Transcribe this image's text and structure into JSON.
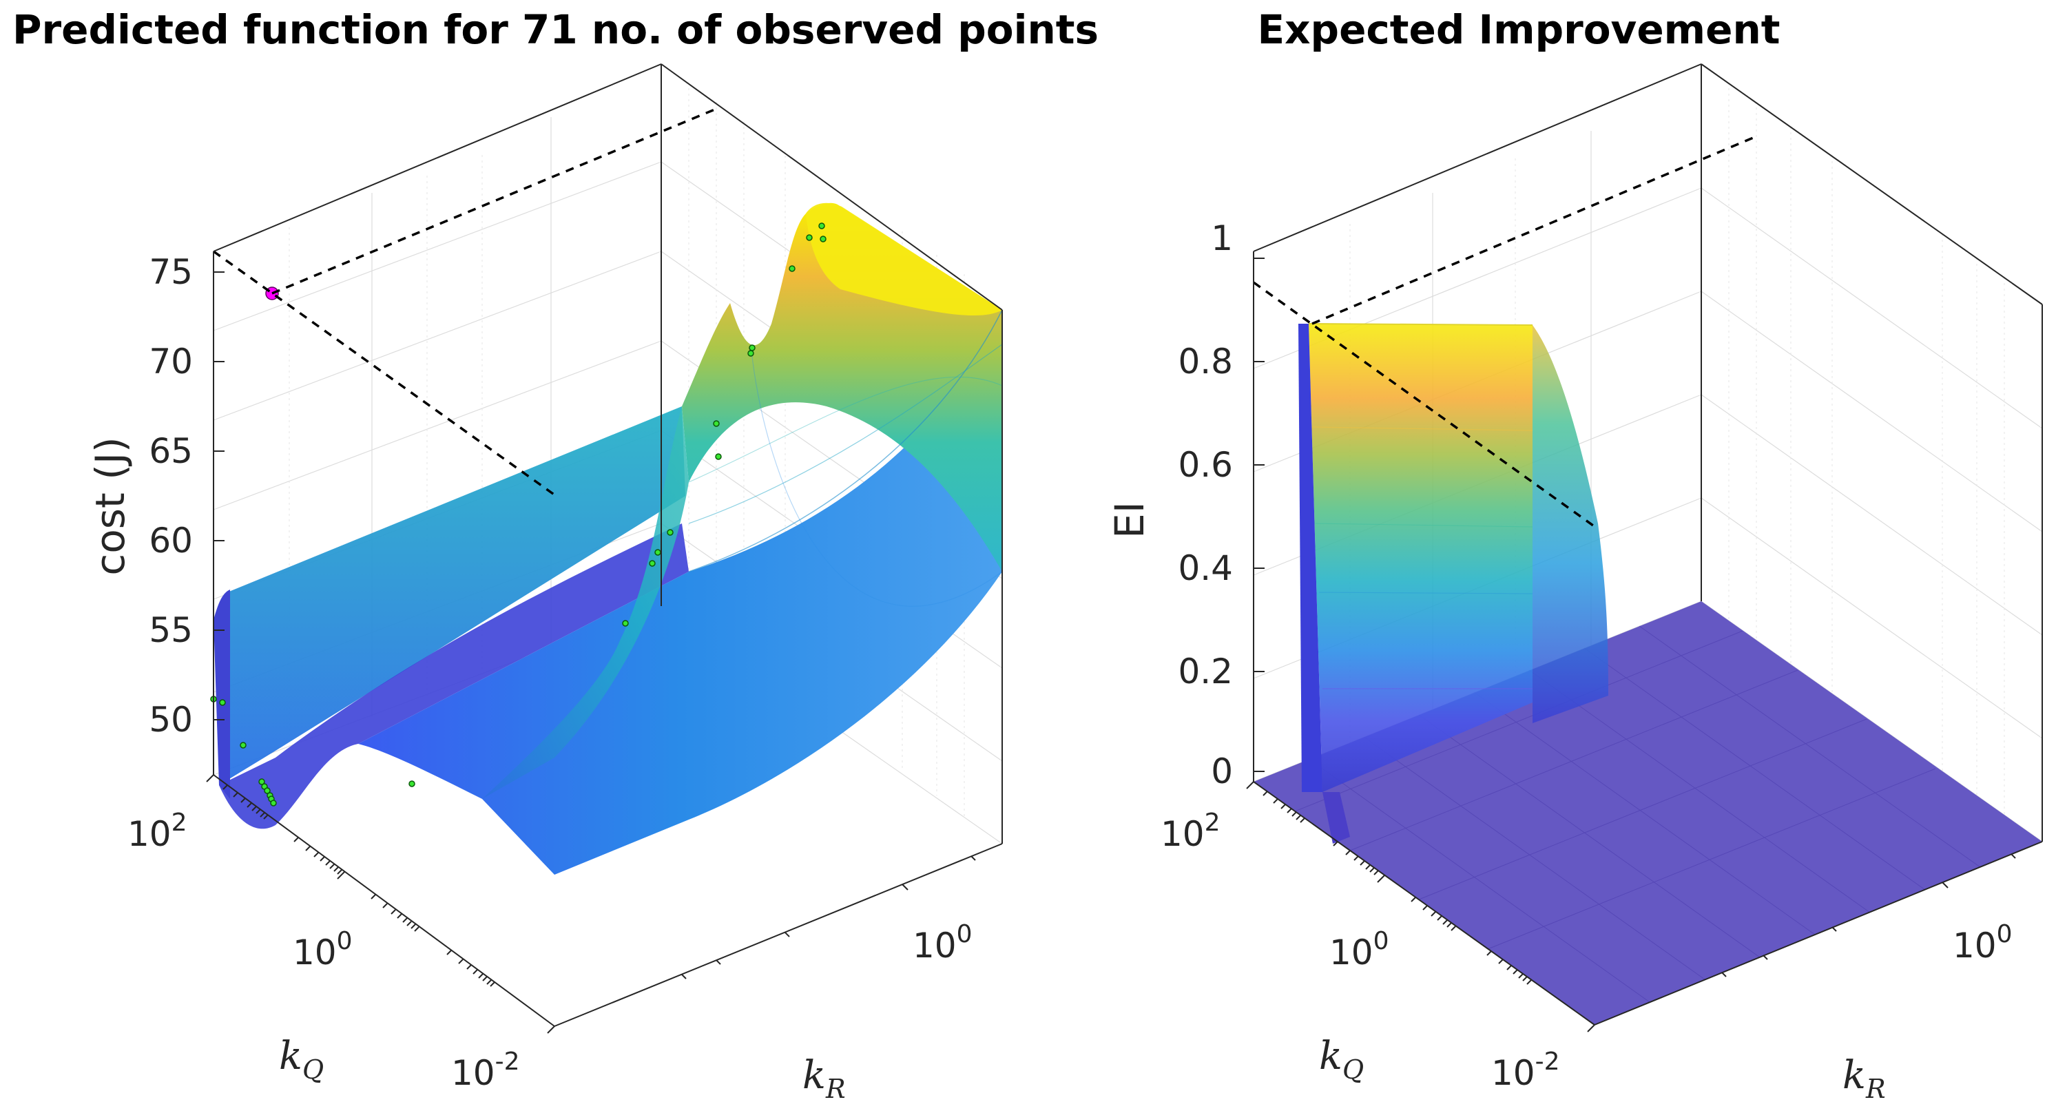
{
  "chart_data": [
    {
      "type": "surface",
      "title": "Predicted function for  71 no. of observed points",
      "zlabel": "cost (J)",
      "xlabel": "k",
      "xlabel_sub": "R",
      "ylabel": "k",
      "ylabel_sub": "Q",
      "zlim": [
        46,
        76
      ],
      "zticks": [
        {
          "value": 50,
          "label": "50"
        },
        {
          "value": 55,
          "label": "55"
        },
        {
          "value": 60,
          "label": "60"
        },
        {
          "value": 65,
          "label": "65"
        },
        {
          "value": 70,
          "label": "70"
        },
        {
          "value": 75,
          "label": "75"
        }
      ],
      "kq_ticks": [
        {
          "base": "10",
          "exp": "2"
        },
        {
          "base": "10",
          "exp": "0"
        },
        {
          "base": "10",
          "exp": "-2"
        }
      ],
      "kr_ticks": [
        {
          "base": "10",
          "exp": "0"
        }
      ],
      "observed_points": 71,
      "best_point_cost": 74,
      "colormap": "parula"
    },
    {
      "type": "surface",
      "title": "Expected Improvement",
      "zlabel": "EI",
      "xlabel": "k",
      "xlabel_sub": "R",
      "ylabel": "k",
      "ylabel_sub": "Q",
      "zlim": [
        0,
        1
      ],
      "zticks": [
        {
          "value": 0,
          "label": "0"
        },
        {
          "value": 0.2,
          "label": "0.2"
        },
        {
          "value": 0.4,
          "label": "0.4"
        },
        {
          "value": 0.6,
          "label": "0.6"
        },
        {
          "value": 0.8,
          "label": "0.8"
        },
        {
          "value": 1,
          "label": "1"
        }
      ],
      "kq_ticks": [
        {
          "base": "10",
          "exp": "2"
        },
        {
          "base": "10",
          "exp": "0"
        },
        {
          "base": "10",
          "exp": "-2"
        }
      ],
      "kr_ticks": [
        {
          "base": "10",
          "exp": "0"
        }
      ],
      "ei_max": 0.85,
      "colormap": "parula"
    }
  ]
}
